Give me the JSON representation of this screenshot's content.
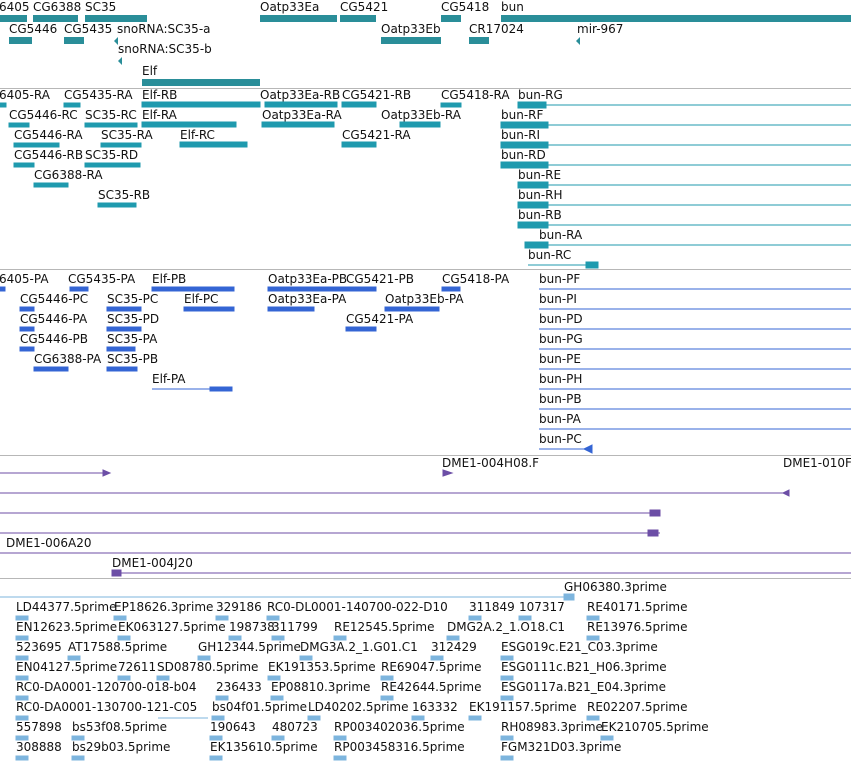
{
  "colors": {
    "gene": "#2a8e99",
    "transcript": "#1f9aae",
    "protein": "#3465d4",
    "clone": "#6c4ea6",
    "est": "#7db5de",
    "separator": "#b7b7b7",
    "text": "#111111"
  },
  "tracks": {
    "genes": {
      "labels": [
        "6405",
        "CG6388",
        "SC35",
        "Oatp33Ea",
        "CG5421",
        "CG5418",
        "bun",
        "CG5446",
        "CG5435",
        "snoRNA:SC35-a",
        "snoRNA:SC35-b",
        "Oatp33Eb",
        "CR17024",
        "mir-967",
        "Elf"
      ]
    },
    "transcripts": {
      "labels": [
        "6405-RA",
        "CG5435-RA",
        "Elf-RB",
        "Oatp33Ea-RB",
        "CG5421-RB",
        "CG5418-RA",
        "bun-RG",
        "CG5446-RC",
        "SC35-RC",
        "Elf-RA",
        "Oatp33Ea-RA",
        "Oatp33Eb-RA",
        "bun-RF",
        "CG5446-RA",
        "SC35-RA",
        "Elf-RC",
        "CG5421-RA",
        "bun-RI",
        "CG5446-RB",
        "SC35-RD",
        "bun-RD",
        "CG6388-RA",
        "bun-RE",
        "SC35-RB",
        "bun-RH",
        "bun-RB",
        "bun-RA",
        "bun-RC"
      ]
    },
    "proteins": {
      "labels": [
        "6405-PA",
        "CG5435-PA",
        "Elf-PB",
        "Oatp33Ea-PB",
        "CG5421-PB",
        "CG5418-PA",
        "bun-PF",
        "CG5446-PC",
        "SC35-PC",
        "Elf-PC",
        "Oatp33Ea-PA",
        "Oatp33Eb-PA",
        "bun-PI",
        "CG5446-PA",
        "SC35-PD",
        "CG5421-PA",
        "bun-PD",
        "CG5446-PB",
        "SC35-PA",
        "bun-PG",
        "CG6388-PA",
        "SC35-PB",
        "bun-PE",
        "Elf-PA",
        "bun-PH",
        "bun-PB",
        "bun-PA",
        "bun-PC"
      ]
    },
    "clones": {
      "labels": [
        "DME1-004H08.F",
        "DME1-010F",
        "DME1-006A20",
        "DME1-004J20"
      ]
    },
    "ests": {
      "labels": [
        "GH06380.3prime",
        "LD44377.5prime",
        "EP18626.3prime",
        "329186",
        "RC0-DL0001-140700-022-D10",
        "311849",
        "107317",
        "RE40171.5prime",
        "EN12623.5prime",
        "EK063127.5prime",
        "198738",
        "311799",
        "RE12545.5prime",
        "DMG2A.2_1.O18.C1",
        "RE13976.5prime",
        "523695",
        "AT17588.5prime",
        "GH12344.5prime",
        "DMG3A.2_1.G01.C1",
        "312429",
        "ESG019c.E21_C03.3prime",
        "EN04127.5prime",
        "72611",
        "SD08780.5prime",
        "EK191353.5prime",
        "RE69047.5prime",
        "ESG0111c.B21_H06.3prime",
        "RC0-DA0001-120700-018-b04",
        "236433",
        "EP08810.3prime",
        "RE42644.5prime",
        "ESG0117a.B21_E04.3prime",
        "RC0-DA0001-130700-121-C05",
        "bs04f01.5prime",
        "LD40202.5prime",
        "163332",
        "EK191157.5prime",
        "RE02207.5prime",
        "557898",
        "bs53f08.5prime",
        "190643",
        "480723",
        "RP003402036.5prime",
        "RH08983.3prime",
        "EK210705.5prime",
        "308888",
        "bs29b03.5prime",
        "EK135610.5prime",
        "RP003458316.5prime",
        "FGM321D03.3prime"
      ]
    }
  }
}
